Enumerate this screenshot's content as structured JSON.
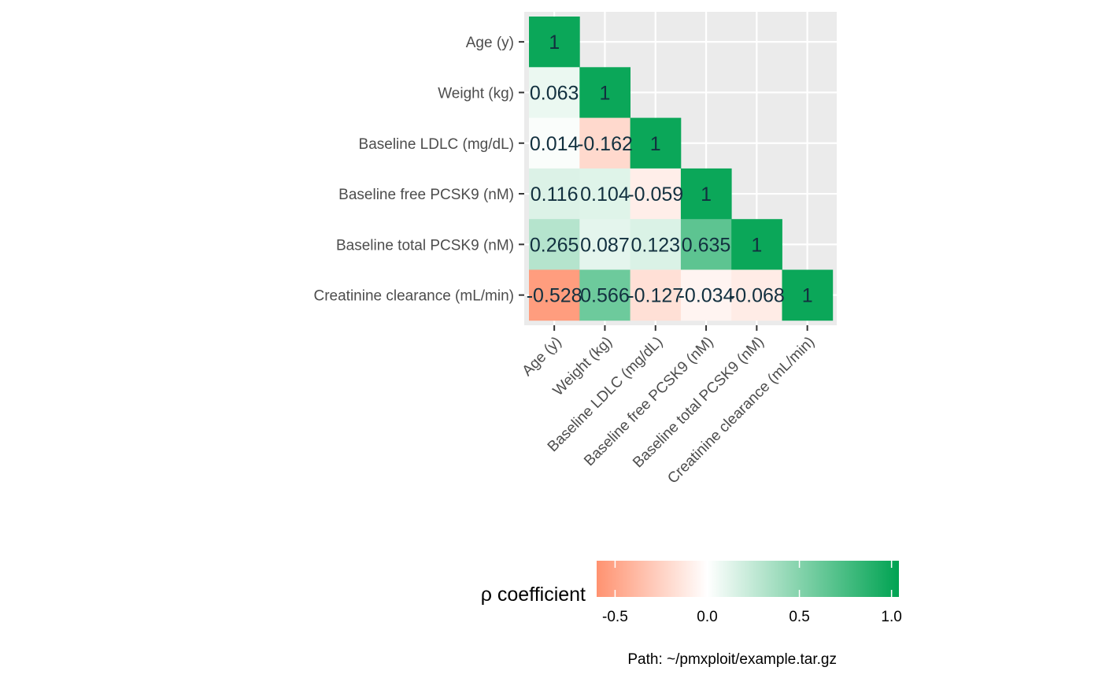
{
  "chart_data": {
    "type": "heatmap",
    "variables": [
      "Age (y)",
      "Weight (kg)",
      "Baseline LDLC (mg/dL)",
      "Baseline free PCSK9 (nM)",
      "Baseline total PCSK9 (nM)",
      "Creatinine clearance (mL/min)"
    ],
    "cells": [
      {
        "row": 0,
        "col": 0,
        "value": 1,
        "label": "1"
      },
      {
        "row": 1,
        "col": 0,
        "value": 0.063,
        "label": "0.063"
      },
      {
        "row": 1,
        "col": 1,
        "value": 1,
        "label": "1"
      },
      {
        "row": 2,
        "col": 0,
        "value": 0.014,
        "label": "0.014"
      },
      {
        "row": 2,
        "col": 1,
        "value": -0.162,
        "label": "-0.162"
      },
      {
        "row": 2,
        "col": 2,
        "value": 1,
        "label": "1"
      },
      {
        "row": 3,
        "col": 0,
        "value": 0.116,
        "label": "0.116"
      },
      {
        "row": 3,
        "col": 1,
        "value": 0.104,
        "label": "0.104"
      },
      {
        "row": 3,
        "col": 2,
        "value": -0.059,
        "label": "-0.059"
      },
      {
        "row": 3,
        "col": 3,
        "value": 1,
        "label": "1"
      },
      {
        "row": 4,
        "col": 0,
        "value": 0.265,
        "label": "0.265"
      },
      {
        "row": 4,
        "col": 1,
        "value": 0.087,
        "label": "0.087"
      },
      {
        "row": 4,
        "col": 2,
        "value": 0.123,
        "label": "0.123"
      },
      {
        "row": 4,
        "col": 3,
        "value": 0.635,
        "label": "0.635"
      },
      {
        "row": 4,
        "col": 4,
        "value": 1,
        "label": "1"
      },
      {
        "row": 5,
        "col": 0,
        "value": -0.528,
        "label": "-0.528"
      },
      {
        "row": 5,
        "col": 1,
        "value": 0.566,
        "label": "0.566"
      },
      {
        "row": 5,
        "col": 2,
        "value": -0.127,
        "label": "-0.127"
      },
      {
        "row": 5,
        "col": 3,
        "value": -0.034,
        "label": "-0.034"
      },
      {
        "row": 5,
        "col": 4,
        "value": -0.068,
        "label": "-0.068"
      },
      {
        "row": 5,
        "col": 5,
        "value": 1,
        "label": "1"
      }
    ],
    "color_scale": {
      "low": "#ff9270",
      "mid": "#ffffff",
      "high": "#00a352",
      "domain": [
        -0.6,
        1.05
      ]
    },
    "legend": {
      "title": "ρ coefficient",
      "ticks": [
        -0.5,
        0.0,
        0.5,
        1.0
      ],
      "tick_labels": [
        "-0.5",
        "0.0",
        "0.5",
        "1.0"
      ],
      "placement": "bottom"
    },
    "panel_background": "#ebebeb",
    "grid": true
  },
  "caption": "Path: ~/pmxploit/example.tar.gz"
}
